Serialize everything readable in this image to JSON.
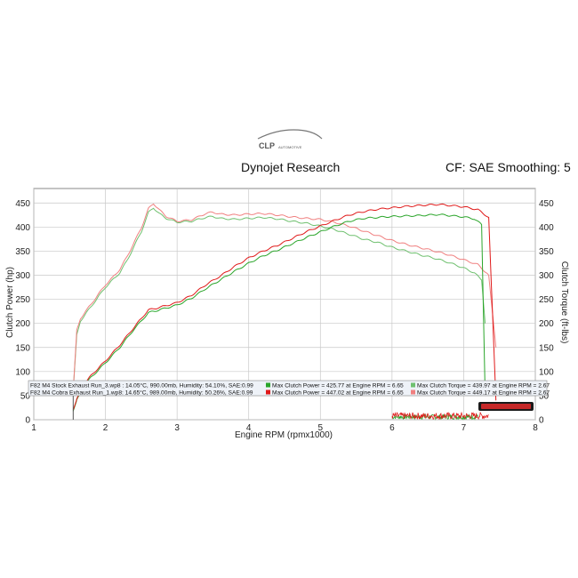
{
  "header": {
    "logo_text": "CLP",
    "logo_subtext": "AUTOMOTIVE",
    "left_title": "Dynojet Research",
    "right_title": "CF: SAE Smoothing: 5"
  },
  "chart_data": {
    "type": "line",
    "xlabel": "Engine RPM (rpmx1000)",
    "ylabel_left": "Clutch Power (hp)",
    "ylabel_right": "Clutch Torque (ft-lbs)",
    "xlim": [
      1,
      8
    ],
    "ylim": [
      0,
      480
    ],
    "x_ticks": [
      1,
      2,
      3,
      4,
      5,
      6,
      7,
      8
    ],
    "y_ticks_left": [
      0,
      50,
      100,
      150,
      200,
      250,
      300,
      350,
      400,
      450
    ],
    "y_ticks_right": [
      0,
      50,
      100,
      150,
      200,
      250,
      300,
      350,
      400,
      450
    ],
    "grid": true,
    "legend_placement": "lower-inside",
    "colors": {
      "stock_power": "#2aa52a",
      "stock_torque": "#6fc06f",
      "cobra_power": "#e01a1a",
      "cobra_torque": "#f08080",
      "legend_box": "#eef2f8",
      "grid": "#c8c8c8"
    },
    "legend": [
      {
        "run": "F82 M4 Stock Exhaust Run_3.wp8 : 14.05°C, 990.00mb, Humidity: 54.10%, SAE:0.99",
        "power": "Max Clutch Power = 425.77 at Engine RPM = 6.65",
        "torque": "Max Clutch Torque = 439.97 at Engine RPM = 2.67"
      },
      {
        "run": "F82 M4 Cobra Exhaust Run_1.wp8: 14.65°C, 989.00mb, Humidity: 50.26%, SAE:0.99",
        "power": "Max Clutch Power = 447.02 at Engine RPM = 6.65",
        "torque": "Max Clutch Torque = 449.17 at Engine RPM = 2.67"
      }
    ],
    "series": [
      {
        "key": "stock_torque",
        "x": [
          1.55,
          1.6,
          1.65,
          1.75,
          1.85,
          2.0,
          2.1,
          2.2,
          2.3,
          2.4,
          2.5,
          2.6,
          2.67,
          2.75,
          2.85,
          3.0,
          3.2,
          3.4,
          3.5,
          3.6,
          3.8,
          4.0,
          4.2,
          4.4,
          4.6,
          4.8,
          5.0,
          5.2,
          5.4,
          5.6,
          5.8,
          6.0,
          6.2,
          6.4,
          6.6,
          6.8,
          7.0,
          7.15,
          7.25,
          7.3
        ],
        "y": [
          60,
          175,
          205,
          225,
          245,
          275,
          290,
          305,
          330,
          360,
          390,
          430,
          440,
          428,
          418,
          410,
          412,
          420,
          422,
          418,
          416,
          418,
          420,
          417,
          412,
          408,
          402,
          395,
          385,
          375,
          368,
          358,
          350,
          342,
          335,
          326,
          315,
          305,
          290,
          200
        ]
      },
      {
        "key": "cobra_torque",
        "x": [
          1.55,
          1.6,
          1.65,
          1.75,
          1.85,
          2.0,
          2.1,
          2.2,
          2.3,
          2.4,
          2.5,
          2.6,
          2.67,
          2.75,
          2.85,
          3.0,
          3.2,
          3.4,
          3.5,
          3.6,
          3.8,
          4.0,
          4.2,
          4.4,
          4.6,
          4.8,
          5.0,
          5.2,
          5.4,
          5.6,
          5.8,
          6.0,
          6.2,
          6.4,
          6.6,
          6.8,
          7.0,
          7.2,
          7.35,
          7.45
        ],
        "y": [
          60,
          185,
          210,
          230,
          250,
          280,
          295,
          312,
          338,
          368,
          398,
          438,
          449,
          436,
          422,
          412,
          415,
          428,
          431,
          427,
          425,
          427,
          428,
          425,
          421,
          418,
          416,
          410,
          402,
          392,
          382,
          372,
          364,
          357,
          350,
          342,
          332,
          322,
          300,
          150
        ]
      },
      {
        "key": "stock_power",
        "x": [
          1.55,
          1.6,
          1.7,
          1.8,
          2.0,
          2.2,
          2.4,
          2.6,
          2.67,
          2.8,
          3.0,
          3.2,
          3.4,
          3.6,
          3.8,
          4.0,
          4.2,
          4.4,
          4.6,
          4.8,
          5.0,
          5.2,
          5.4,
          5.6,
          5.8,
          6.0,
          6.2,
          6.4,
          6.65,
          6.8,
          7.0,
          7.15,
          7.25,
          7.3
        ],
        "y": [
          18,
          40,
          70,
          88,
          118,
          150,
          188,
          222,
          225,
          230,
          238,
          252,
          272,
          290,
          308,
          325,
          340,
          352,
          365,
          378,
          390,
          402,
          412,
          418,
          420,
          422,
          423,
          424,
          426,
          424,
          421,
          417,
          405,
          50
        ]
      },
      {
        "key": "cobra_power",
        "x": [
          1.55,
          1.6,
          1.7,
          1.8,
          2.0,
          2.2,
          2.4,
          2.6,
          2.67,
          2.8,
          3.0,
          3.2,
          3.4,
          3.6,
          3.8,
          4.0,
          4.2,
          4.4,
          4.6,
          4.8,
          5.0,
          5.2,
          5.4,
          5.6,
          5.8,
          6.0,
          6.2,
          6.4,
          6.65,
          6.8,
          7.0,
          7.2,
          7.35,
          7.45
        ],
        "y": [
          20,
          42,
          72,
          92,
          122,
          155,
          192,
          228,
          230,
          235,
          243,
          258,
          280,
          298,
          318,
          336,
          350,
          362,
          376,
          390,
          402,
          414,
          425,
          432,
          437,
          440,
          443,
          445,
          447,
          445,
          442,
          436,
          420,
          40
        ]
      }
    ]
  }
}
